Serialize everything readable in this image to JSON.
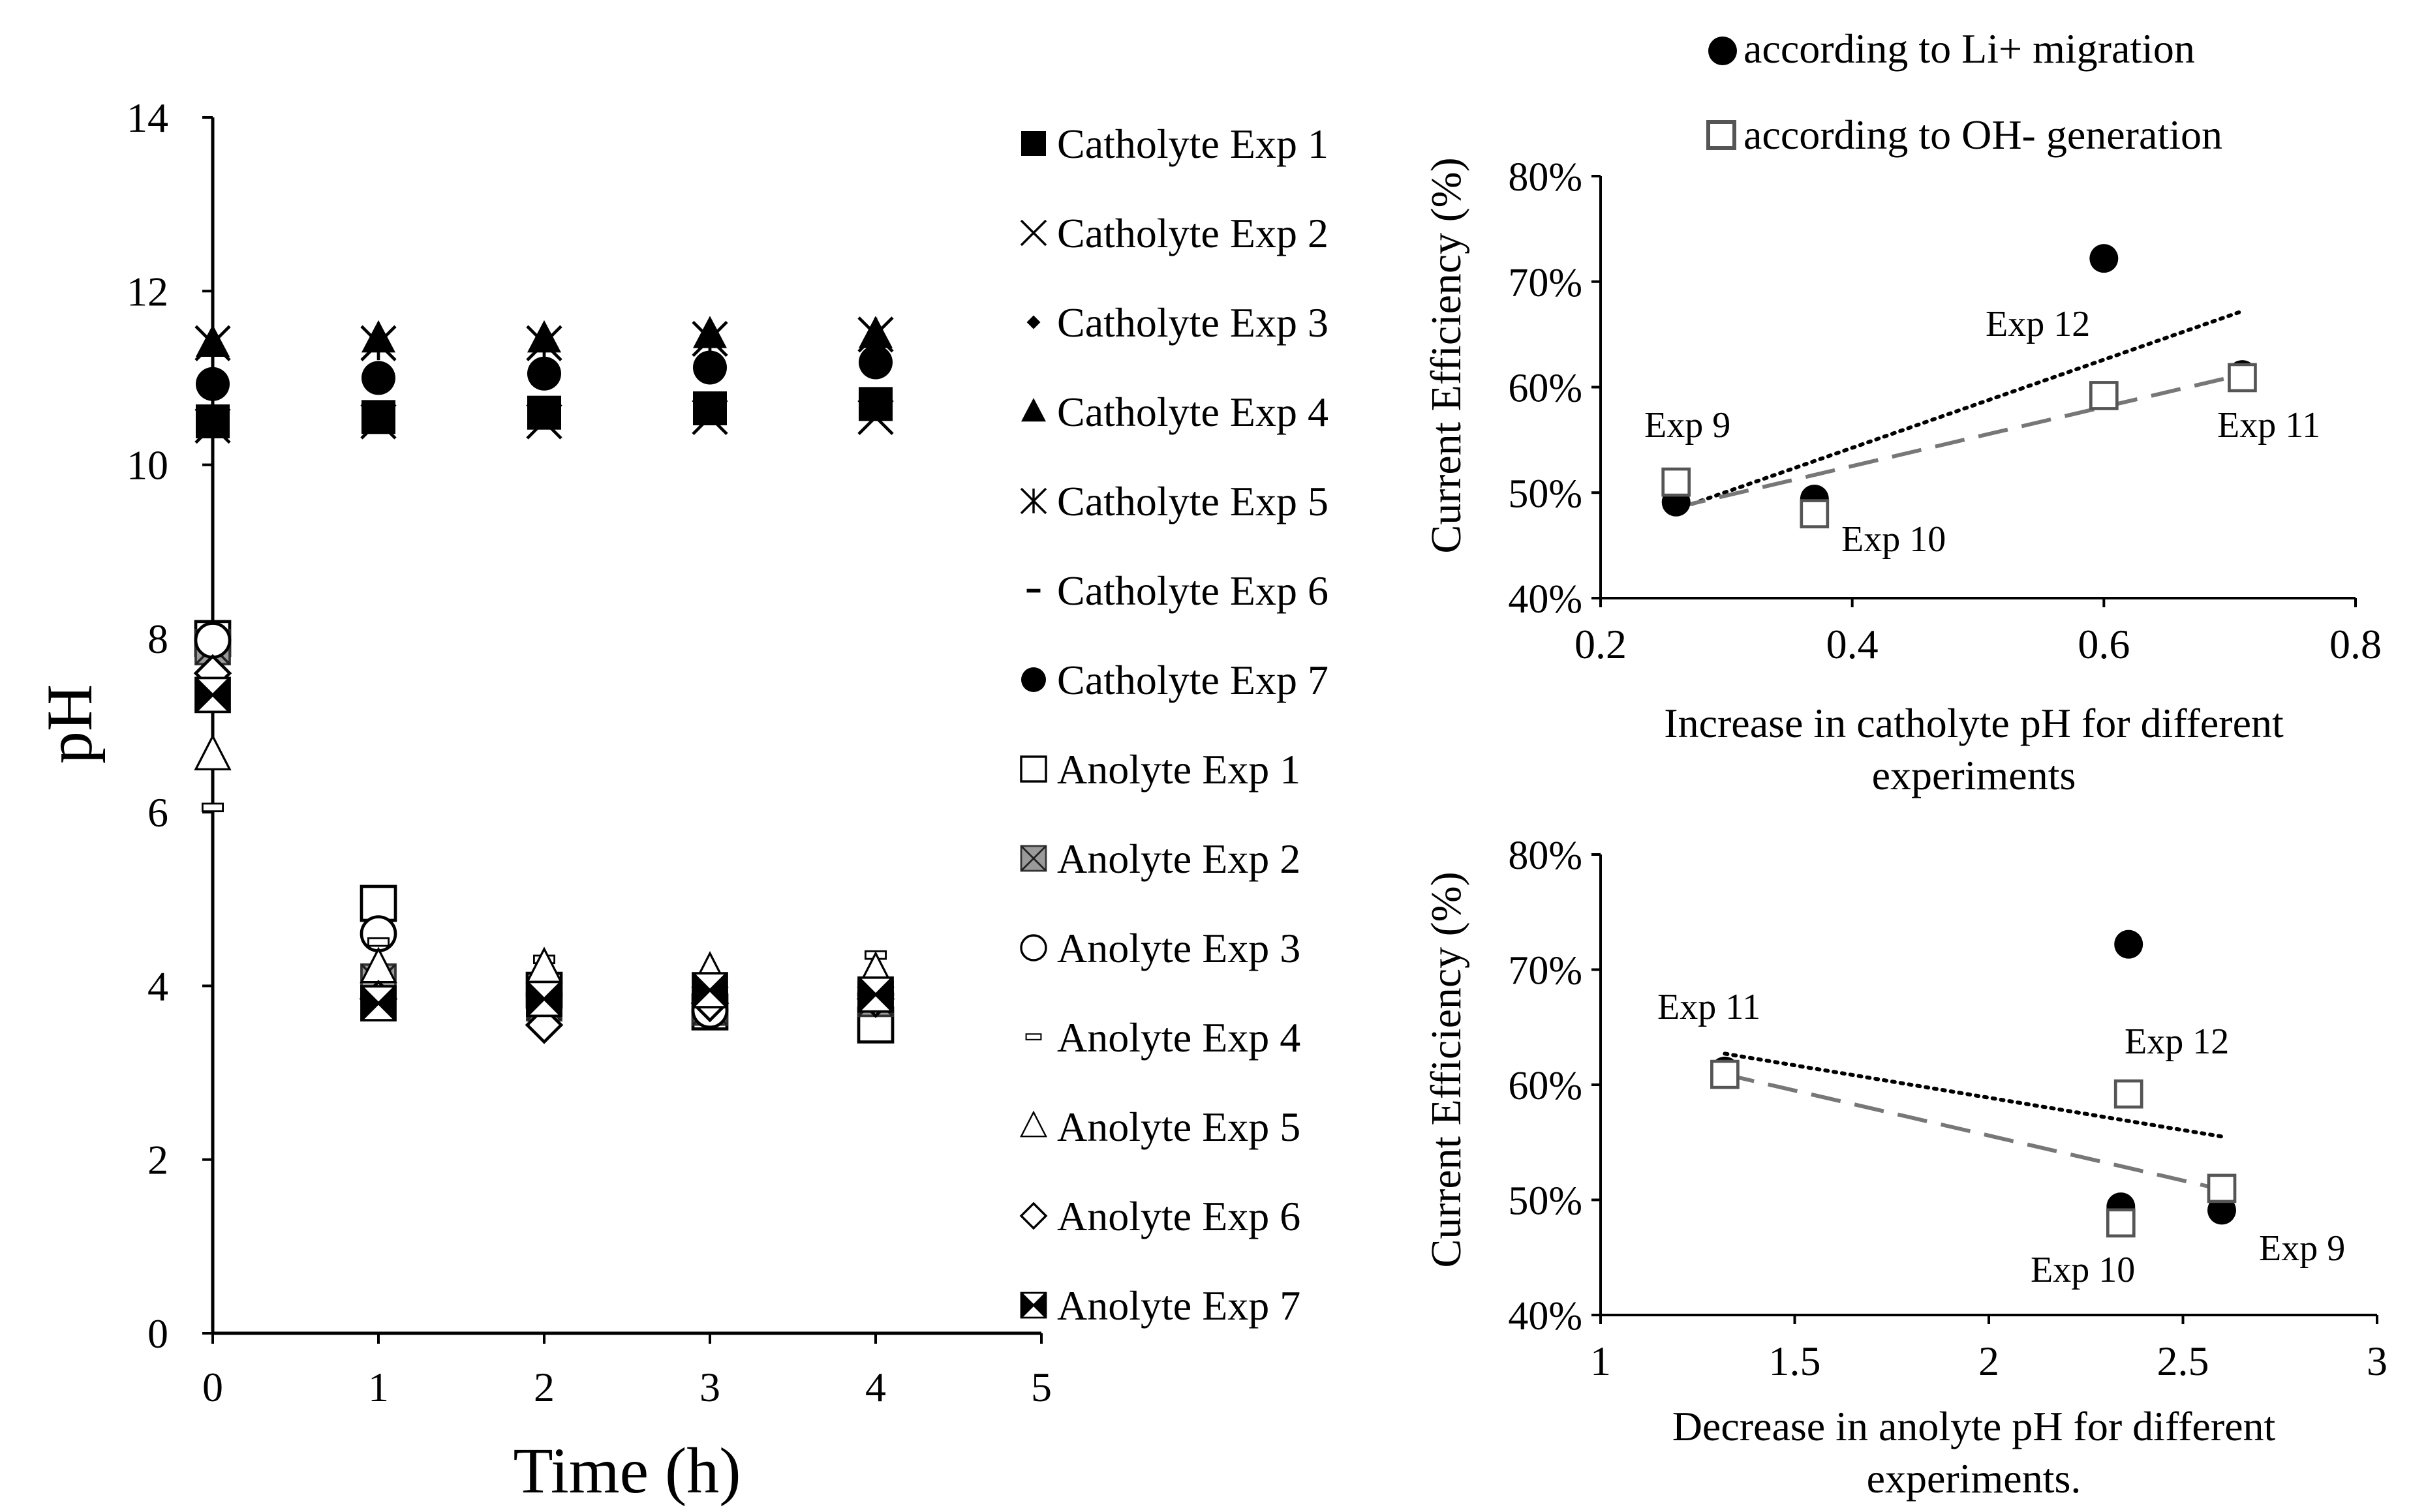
{
  "chart_data": [
    {
      "id": "main",
      "type": "scatter",
      "title": "",
      "xlabel": "Time (h)",
      "ylabel": "pH",
      "xlim": [
        0,
        5
      ],
      "ylim": [
        0,
        14
      ],
      "x_ticks": [
        "0",
        "1",
        "2",
        "3",
        "4",
        "5"
      ],
      "y_ticks": [
        "0",
        "2",
        "4",
        "6",
        "8",
        "10",
        "12",
        "14"
      ],
      "grid": false,
      "legend_position": "right",
      "series": [
        {
          "name": "Catholyte Exp 1",
          "marker": "square-filled",
          "x": [
            0,
            1,
            2,
            3,
            4
          ],
          "y": [
            10.5,
            10.55,
            10.6,
            10.65,
            10.7
          ]
        },
        {
          "name": "Catholyte Exp 2",
          "marker": "x-cross",
          "x": [
            0,
            1,
            2,
            3,
            4
          ],
          "y": [
            10.45,
            10.5,
            10.5,
            10.55,
            10.55
          ]
        },
        {
          "name": "Catholyte Exp 3",
          "marker": "diamond-small-filled",
          "x": [
            0,
            1,
            2,
            3,
            4
          ],
          "y": [
            10.5,
            10.55,
            10.6,
            10.65,
            10.7
          ]
        },
        {
          "name": "Catholyte Exp 4",
          "marker": "triangle-filled",
          "x": [
            0,
            1,
            2,
            3,
            4
          ],
          "y": [
            11.4,
            11.45,
            11.45,
            11.5,
            11.5
          ]
        },
        {
          "name": "Catholyte Exp 5",
          "marker": "asterisk",
          "x": [
            0,
            1,
            2,
            3,
            4
          ],
          "y": [
            11.4,
            11.4,
            11.4,
            11.45,
            11.5
          ]
        },
        {
          "name": "Catholyte Exp 6",
          "marker": "dash",
          "x": [
            0,
            1,
            2,
            3,
            4
          ],
          "y": [
            10.5,
            10.55,
            10.6,
            10.65,
            10.7
          ]
        },
        {
          "name": "Catholyte Exp 7",
          "marker": "circle-filled",
          "x": [
            0,
            1,
            2,
            3,
            4
          ],
          "y": [
            10.93,
            11.0,
            11.05,
            11.12,
            11.18
          ]
        },
        {
          "name": "Anolyte Exp 1",
          "marker": "square-open",
          "x": [
            0,
            1,
            2,
            3,
            4
          ],
          "y": [
            8.0,
            4.95,
            3.95,
            3.7,
            3.55
          ]
        },
        {
          "name": "Anolyte Exp 2",
          "marker": "square-cross-gray",
          "x": [
            0,
            1,
            2,
            3,
            4
          ],
          "y": [
            7.9,
            4.05,
            3.8,
            3.75,
            3.85
          ]
        },
        {
          "name": "Anolyte Exp 3",
          "marker": "circle-open",
          "x": [
            0,
            1,
            2,
            3,
            4
          ],
          "y": [
            7.98,
            4.6,
            3.9,
            3.72,
            3.9
          ]
        },
        {
          "name": "Anolyte Exp 4",
          "marker": "dash-open",
          "x": [
            0,
            1,
            2,
            3,
            4
          ],
          "y": [
            6.05,
            4.5,
            4.3,
            4.0,
            4.35
          ]
        },
        {
          "name": "Anolyte Exp 5",
          "marker": "triangle-open",
          "x": [
            0,
            1,
            2,
            3,
            4
          ],
          "y": [
            6.65,
            4.2,
            4.2,
            4.15,
            4.15
          ]
        },
        {
          "name": "Anolyte Exp 6",
          "marker": "diamond-open",
          "x": [
            0,
            1,
            2,
            3,
            4
          ],
          "y": [
            7.6,
            3.85,
            3.55,
            3.8,
            3.85
          ]
        },
        {
          "name": "Anolyte Exp 7",
          "marker": "square-bowtie",
          "x": [
            0,
            1,
            2,
            3,
            4
          ],
          "y": [
            7.35,
            3.8,
            3.85,
            3.95,
            3.9
          ]
        }
      ]
    },
    {
      "id": "top-right",
      "type": "scatter",
      "xlabel": "Increase in catholyte pH for different experiments",
      "ylabel": "Current Efficiency (%)",
      "xlim": [
        0.2,
        0.8
      ],
      "ylim": [
        40,
        80
      ],
      "x_ticks": [
        "0.2",
        "0.4",
        "0.6",
        "0.8"
      ],
      "y_ticks": [
        "40%",
        "50%",
        "60%",
        "70%",
        "80%"
      ],
      "legend": [
        "according to Li+ migration",
        "according to OH- generation"
      ],
      "legend_position": "top",
      "series": [
        {
          "name": "according to Li+ migration",
          "marker": "circle-filled",
          "x": [
            0.26,
            0.37,
            0.6,
            0.71
          ],
          "y": [
            49.1,
            49.4,
            72.2,
            61.2
          ]
        },
        {
          "name": "according to OH- generation",
          "marker": "square-open-gray",
          "x": [
            0.26,
            0.37,
            0.6,
            0.71
          ],
          "y": [
            51.0,
            48.0,
            59.2,
            60.9
          ]
        }
      ],
      "trendlines": [
        {
          "series": "according to Li+ migration",
          "style": "dotted",
          "x": [
            0.26,
            0.71
          ],
          "y": [
            48.4,
            67.2
          ]
        },
        {
          "series": "according to OH- generation",
          "style": "dashed",
          "x": [
            0.26,
            0.71
          ],
          "y": [
            48.6,
            61.2
          ]
        }
      ],
      "annotations": [
        "Exp 9",
        "Exp 10",
        "Exp 12",
        "Exp 11"
      ]
    },
    {
      "id": "bottom-right",
      "type": "scatter",
      "xlabel": "Decrease in anolyte pH for different experiments.",
      "ylabel": "Current Efficiency (%)",
      "xlim": [
        1,
        3
      ],
      "ylim": [
        40,
        80
      ],
      "x_ticks": [
        "1",
        "1.5",
        "2",
        "2.5",
        "3"
      ],
      "y_ticks": [
        "40%",
        "50%",
        "60%",
        "70%",
        "80%"
      ],
      "series": [
        {
          "name": "according to Li+ migration",
          "marker": "circle-filled",
          "x": [
            1.32,
            2.34,
            2.36,
            2.6
          ],
          "y": [
            61.2,
            49.4,
            72.2,
            49.1
          ]
        },
        {
          "name": "according to OH- generation",
          "marker": "square-open-gray",
          "x": [
            1.32,
            2.34,
            2.36,
            2.6
          ],
          "y": [
            60.9,
            48.0,
            59.2,
            51.0
          ]
        }
      ],
      "trendlines": [
        {
          "series": "according to Li+ migration",
          "style": "dotted",
          "x": [
            1.32,
            2.6
          ],
          "y": [
            62.7,
            55.5
          ]
        },
        {
          "series": "according to OH- generation",
          "style": "dashed",
          "x": [
            1.32,
            2.6
          ],
          "y": [
            60.9,
            50.9
          ]
        }
      ],
      "annotations": [
        "Exp 11",
        "Exp 12",
        "Exp 10",
        "Exp 9"
      ]
    }
  ]
}
